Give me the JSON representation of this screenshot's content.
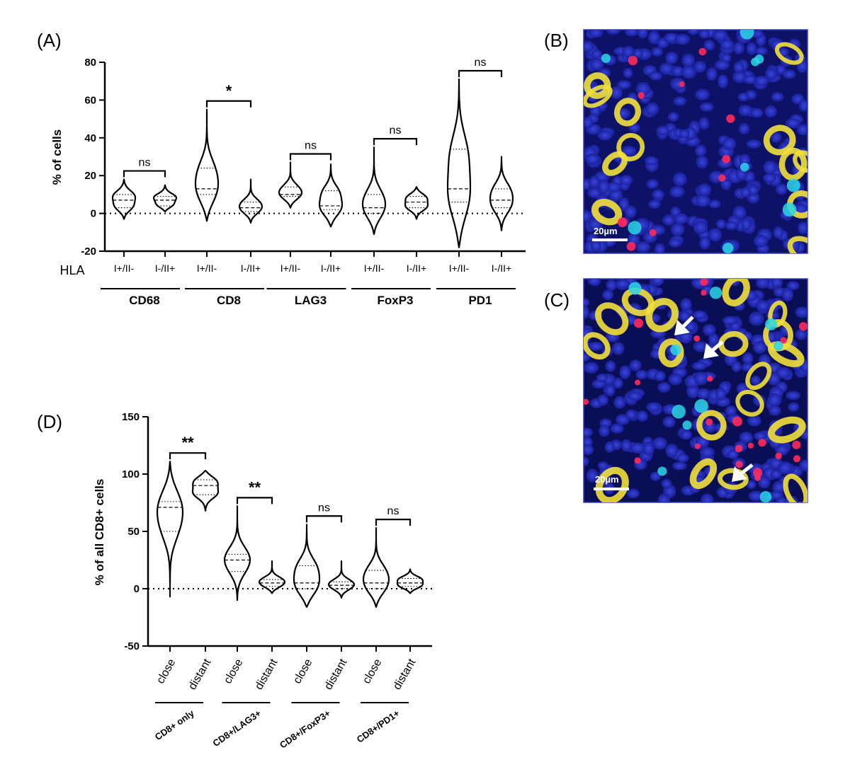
{
  "panels": {
    "A": "(A)",
    "B": "(B)",
    "C": "(C)",
    "D": "(D)"
  },
  "micrographs": {
    "B": {
      "scalebar": "20µm"
    },
    "C": {
      "scalebar": "20µm"
    }
  },
  "chart_data": [
    {
      "id": "A",
      "type": "violin",
      "ylabel": "% of cells",
      "ylim": [
        -20,
        80
      ],
      "yticks": [
        -20,
        0,
        20,
        40,
        60,
        80
      ],
      "hline_dotted_at": 0,
      "row_label": "HLA",
      "categories": [
        "I+/II-",
        "I-/II+",
        "I+/II-",
        "I-/II+",
        "I+/II-",
        "I-/II+",
        "I+/II-",
        "I-/II+",
        "I+/II-",
        "I-/II+"
      ],
      "groups": [
        "CD68",
        "CD8",
        "LAG3",
        "FoxP3",
        "PD1"
      ],
      "significance": [
        "ns",
        "*",
        "ns",
        "ns",
        "ns"
      ],
      "series": [
        {
          "median": 7,
          "q1": 3,
          "q3": 10,
          "min": -3,
          "max": 18
        },
        {
          "median": 7,
          "q1": 4,
          "q3": 9,
          "min": 1,
          "max": 15
        },
        {
          "median": 13,
          "q1": 10,
          "q3": 24,
          "min": -4,
          "max": 55
        },
        {
          "median": 3,
          "q1": 1,
          "q3": 6,
          "min": -5,
          "max": 18
        },
        {
          "median": 10,
          "q1": 9,
          "q3": 14,
          "min": 3,
          "max": 27
        },
        {
          "median": 4,
          "q1": 2,
          "q3": 12,
          "min": -7,
          "max": 26
        },
        {
          "median": 3,
          "q1": 0,
          "q3": 10,
          "min": -11,
          "max": 35
        },
        {
          "median": 6,
          "q1": 3,
          "q3": 9,
          "min": -3,
          "max": 14
        },
        {
          "median": 13,
          "q1": 6,
          "q3": 34,
          "min": -18,
          "max": 71
        },
        {
          "median": 7,
          "q1": 3,
          "q3": 13,
          "min": -9,
          "max": 30
        }
      ]
    },
    {
      "id": "D",
      "type": "violin",
      "ylabel": "% of all CD8+ cells",
      "ylim": [
        -50,
        150
      ],
      "yticks": [
        -50,
        0,
        50,
        100,
        150
      ],
      "hline_dotted_at": 0,
      "categories": [
        "close",
        "distant",
        "close",
        "distant",
        "close",
        "distant",
        "close",
        "distant"
      ],
      "groups": [
        "CD8+ only",
        "CD8+/LAG3+",
        "CD8+/FoxP3+",
        "CD8+/PD1+"
      ],
      "significance": [
        "**",
        "**",
        "ns",
        "ns"
      ],
      "series": [
        {
          "median": 71,
          "q1": 50,
          "q3": 76,
          "min": -7,
          "max": 111
        },
        {
          "median": 90,
          "q1": 82,
          "q3": 95,
          "min": 68,
          "max": 103
        },
        {
          "median": 25,
          "q1": 15,
          "q3": 30,
          "min": -10,
          "max": 72
        },
        {
          "median": 5,
          "q1": 2,
          "q3": 8,
          "min": -4,
          "max": 24
        },
        {
          "median": 5,
          "q1": 0,
          "q3": 20,
          "min": -16,
          "max": 56
        },
        {
          "median": 3,
          "q1": 0,
          "q3": 6,
          "min": -8,
          "max": 24
        },
        {
          "median": 5,
          "q1": 0,
          "q3": 16,
          "min": -16,
          "max": 53
        },
        {
          "median": 5,
          "q1": 2,
          "q3": 9,
          "min": -4,
          "max": 17
        }
      ]
    }
  ]
}
